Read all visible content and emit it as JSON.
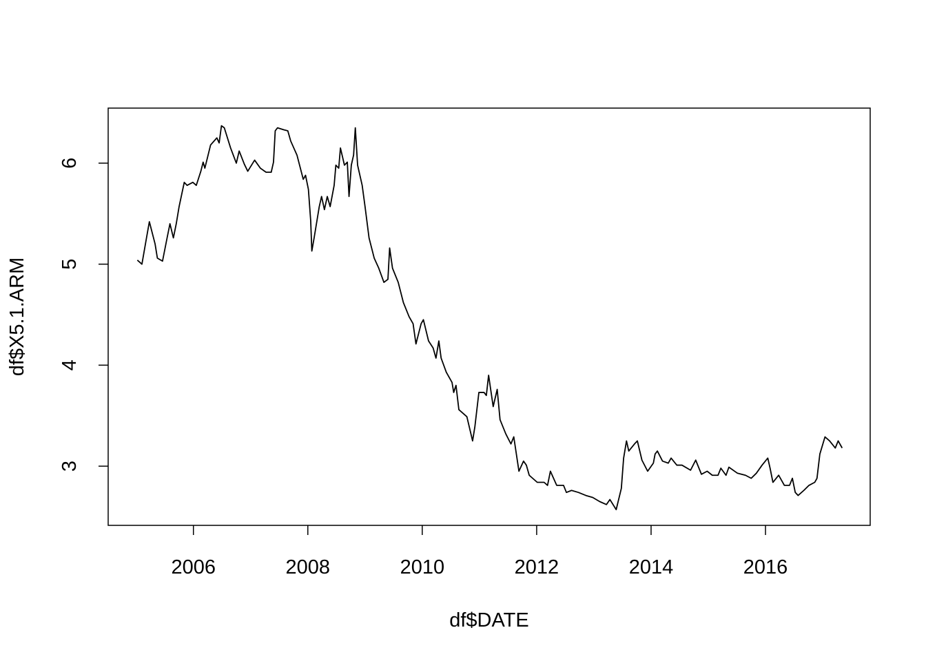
{
  "chart_data": {
    "type": "line",
    "x_label": "df$DATE",
    "y_label": "df$X5.1.ARM",
    "xlim": [
      2004.51,
      2017.83
    ],
    "xticks": [
      2006,
      2008,
      2010,
      2012,
      2014,
      2016
    ],
    "ylim": [
      2.414,
      6.545
    ],
    "yticks": [
      3,
      4,
      5,
      6
    ],
    "series": [
      {
        "color": "#000000",
        "x": [
          2005.02,
          2005.1,
          2005.18,
          2005.23,
          2005.33,
          2005.37,
          2005.46,
          2005.54,
          2005.59,
          2005.65,
          2005.7,
          2005.75,
          2005.84,
          2005.89,
          2005.99,
          2006.05,
          2006.13,
          2006.17,
          2006.2,
          2006.3,
          2006.41,
          2006.45,
          2006.49,
          2006.54,
          2006.65,
          2006.75,
          2006.8,
          2006.89,
          2006.95,
          2007.07,
          2007.17,
          2007.27,
          2007.36,
          2007.4,
          2007.43,
          2007.47,
          2007.58,
          2007.65,
          2007.7,
          2007.81,
          2007.92,
          2007.96,
          2008.01,
          2008.05,
          2008.07,
          2008.11,
          2008.2,
          2008.24,
          2008.29,
          2008.34,
          2008.39,
          2008.46,
          2008.49,
          2008.54,
          2008.57,
          2008.64,
          2008.69,
          2008.72,
          2008.76,
          2008.8,
          2008.83,
          2008.87,
          2008.95,
          2009.0,
          2009.07,
          2009.16,
          2009.24,
          2009.33,
          2009.4,
          2009.43,
          2009.48,
          2009.58,
          2009.67,
          2009.77,
          2009.84,
          2009.89,
          2009.98,
          2010.02,
          2010.11,
          2010.19,
          2010.24,
          2010.29,
          2010.33,
          2010.42,
          2010.52,
          2010.55,
          2010.59,
          2010.64,
          2010.78,
          2010.88,
          2010.92,
          2010.99,
          2011.08,
          2011.12,
          2011.16,
          2011.24,
          2011.31,
          2011.36,
          2011.46,
          2011.55,
          2011.6,
          2011.69,
          2011.77,
          2011.82,
          2011.87,
          2012.01,
          2012.13,
          2012.19,
          2012.24,
          2012.35,
          2012.47,
          2012.52,
          2012.61,
          2012.73,
          2012.86,
          2012.98,
          2013.1,
          2013.22,
          2013.28,
          2013.39,
          2013.48,
          2013.52,
          2013.57,
          2013.61,
          2013.71,
          2013.76,
          2013.84,
          2013.94,
          2014.04,
          2014.07,
          2014.11,
          2014.2,
          2014.3,
          2014.35,
          2014.45,
          2014.54,
          2014.69,
          2014.78,
          2014.88,
          2014.98,
          2015.07,
          2015.17,
          2015.22,
          2015.31,
          2015.36,
          2015.51,
          2015.65,
          2015.75,
          2015.84,
          2015.94,
          2016.04,
          2016.08,
          2016.13,
          2016.23,
          2016.33,
          2016.42,
          2016.47,
          2016.52,
          2016.57,
          2016.67,
          2016.76,
          2016.86,
          2016.9,
          2016.95,
          2017.04,
          2017.12,
          2017.22,
          2017.27,
          2017.34
        ],
        "values": [
          5.04,
          5.0,
          5.26,
          5.42,
          5.2,
          5.06,
          5.03,
          5.26,
          5.4,
          5.26,
          5.4,
          5.57,
          5.81,
          5.78,
          5.81,
          5.78,
          5.92,
          6.01,
          5.95,
          6.18,
          6.25,
          6.2,
          6.37,
          6.35,
          6.15,
          6.0,
          6.12,
          5.99,
          5.92,
          6.03,
          5.95,
          5.91,
          5.91,
          6.01,
          6.32,
          6.35,
          6.33,
          6.32,
          6.22,
          6.08,
          5.84,
          5.88,
          5.74,
          5.43,
          5.13,
          5.26,
          5.57,
          5.67,
          5.54,
          5.67,
          5.57,
          5.78,
          5.98,
          5.95,
          6.15,
          5.98,
          6.01,
          5.67,
          5.98,
          6.08,
          6.35,
          5.98,
          5.78,
          5.57,
          5.26,
          5.06,
          4.96,
          4.82,
          4.85,
          5.16,
          4.96,
          4.82,
          4.62,
          4.48,
          4.41,
          4.21,
          4.41,
          4.45,
          4.24,
          4.17,
          4.07,
          4.24,
          4.07,
          3.93,
          3.83,
          3.73,
          3.8,
          3.56,
          3.49,
          3.25,
          3.39,
          3.73,
          3.73,
          3.7,
          3.9,
          3.59,
          3.76,
          3.46,
          3.32,
          3.22,
          3.29,
          2.95,
          3.05,
          3.01,
          2.91,
          2.84,
          2.84,
          2.81,
          2.95,
          2.81,
          2.81,
          2.74,
          2.76,
          2.74,
          2.71,
          2.69,
          2.65,
          2.62,
          2.67,
          2.57,
          2.78,
          3.08,
          3.25,
          3.15,
          3.22,
          3.25,
          3.06,
          2.95,
          3.03,
          3.12,
          3.15,
          3.05,
          3.03,
          3.08,
          3.01,
          3.01,
          2.96,
          3.06,
          2.92,
          2.95,
          2.91,
          2.91,
          2.98,
          2.91,
          2.99,
          2.93,
          2.91,
          2.88,
          2.93,
          3.01,
          3.08,
          2.98,
          2.84,
          2.91,
          2.81,
          2.81,
          2.88,
          2.74,
          2.71,
          2.76,
          2.81,
          2.84,
          2.88,
          3.12,
          3.29,
          3.25,
          3.18,
          3.25,
          3.18
        ]
      }
    ]
  }
}
